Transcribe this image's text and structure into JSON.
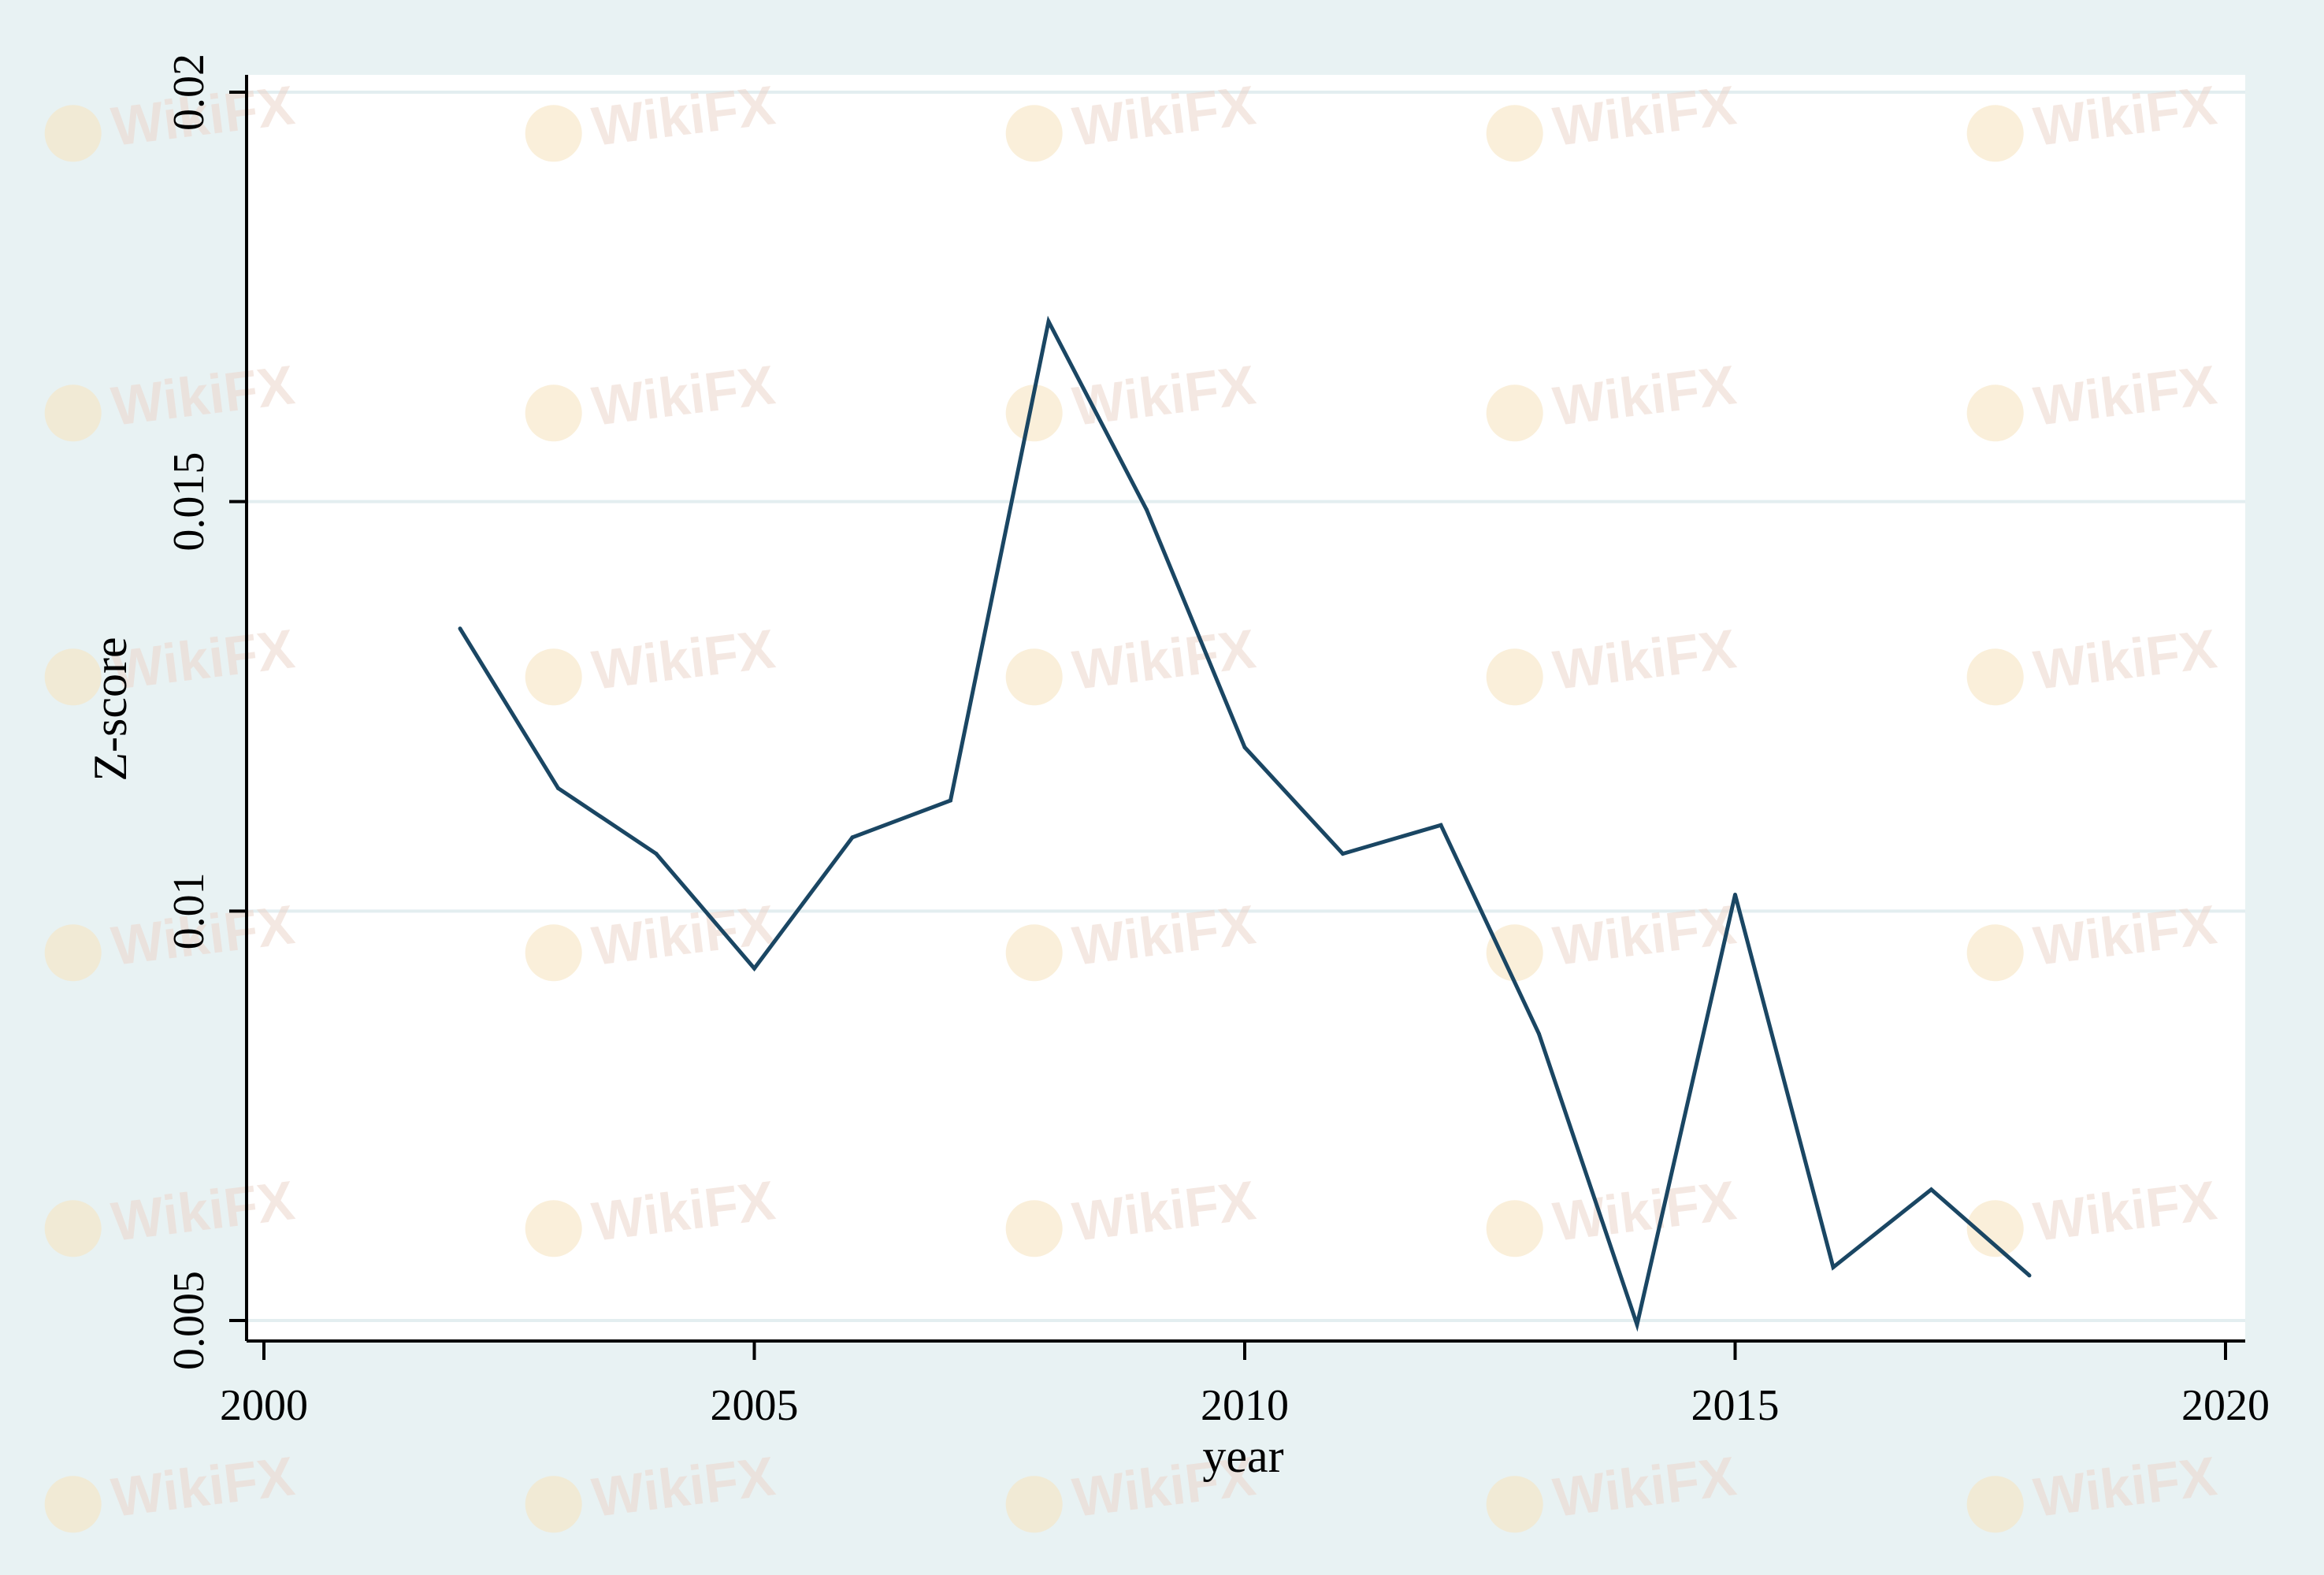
{
  "watermark": {
    "text": "WikiFX",
    "icon": "wikifx-logo-icon"
  },
  "colors": {
    "outer_background": "#e8f2f3",
    "plot_background": "#ffffff",
    "gridline": "#e3eef0",
    "series_line": "#1a4663",
    "axis": "#000000"
  },
  "chart_data": {
    "type": "line",
    "title": "",
    "xlabel": "year",
    "ylabel": "Z-score",
    "xlim": [
      2000,
      2020
    ],
    "ylim": [
      0.005,
      0.02
    ],
    "x_ticks": [
      2000,
      2005,
      2010,
      2015,
      2020
    ],
    "x_tick_labels": [
      "2000",
      "2005",
      "2010",
      "2015",
      "2020"
    ],
    "y_ticks": [
      0.005,
      0.01,
      0.015,
      0.02
    ],
    "y_tick_labels": [
      "0.005",
      "0.01",
      "0.015",
      "0.02"
    ],
    "grid": "horizontal",
    "legend": "none",
    "series": [
      {
        "x": [
          2002,
          2003,
          2004,
          2005,
          2006,
          2007,
          2008,
          2009,
          2010,
          2011,
          2012,
          2013,
          2014,
          2015,
          2016,
          2017,
          2018
        ],
        "values": [
          0.01345,
          0.0115,
          0.0107,
          0.0093,
          0.0109,
          0.01135,
          0.0172,
          0.0149,
          0.012,
          0.0107,
          0.01105,
          0.0085,
          0.00495,
          0.0102,
          0.00565,
          0.0066,
          0.00555
        ]
      }
    ]
  }
}
